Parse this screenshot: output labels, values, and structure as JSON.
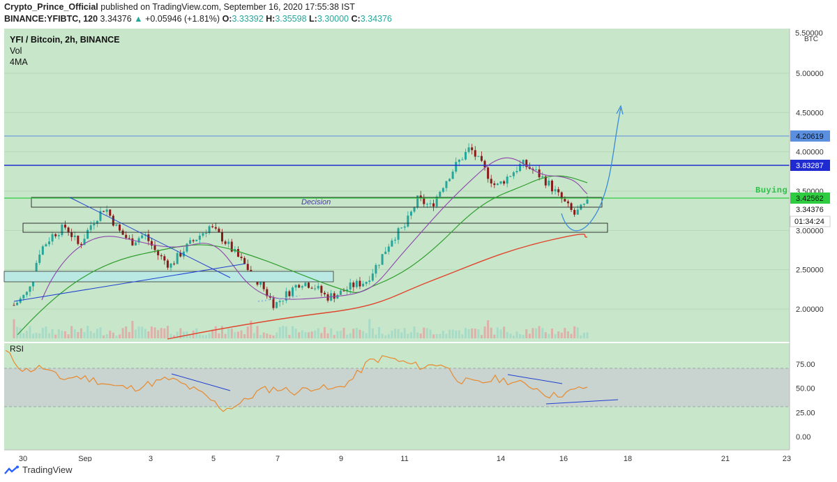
{
  "header": {
    "author": "Crypto_Prince_Official",
    "published_text": "published on TradingView.com, September 16, 2020 17:55:38 IST",
    "symbol": "BINANCE:YFIBTC, 120",
    "last": "3.34376",
    "change": "+0.05946 (+1.81%)",
    "o_label": "O:",
    "o": "3.33392",
    "h_label": "H:",
    "h": "3.35598",
    "l_label": "L:",
    "l": "3.30000",
    "c_label": "C:",
    "c": "3.34376"
  },
  "legend": {
    "title": "YFI / Bitcoin, 2h, BINANCE",
    "vol": "Vol",
    "ma": "4MA"
  },
  "axis": {
    "currency": "BTC",
    "top_partial": "5.50000"
  },
  "labels": {
    "decision": "Decision",
    "buying": "Buying",
    "rsi": "RSI",
    "countdown": "01:34:24",
    "last_price": "3.34376",
    "level_upper": "4.20619",
    "level_mid": "3.83287",
    "level_buy": "3.42562"
  },
  "footer": {
    "brand": "TradingView"
  },
  "colors": {
    "background": "#c8e6c9",
    "up": "#26a69a",
    "down": "#8b1a1a",
    "level_upper": "#5b8fe0",
    "level_mid": "#1f2bd1",
    "level_buy": "#2ecc40",
    "rsi_line": "#e88a2e",
    "ma_purple": "#8e44ad",
    "ma_green": "#2e9e2e",
    "ma_red": "#e0442c",
    "projection": "#3a8ad8"
  },
  "chart_data": [
    {
      "type": "line",
      "title": "YFI / Bitcoin, 2h, BINANCE",
      "ylabel": "BTC",
      "x_ticks": [
        "30",
        "Sep",
        "3",
        "5",
        "7",
        "9",
        "11",
        "14",
        "16",
        "18",
        "21",
        "23"
      ],
      "y_ticks": [
        2.0,
        2.5,
        3.0,
        3.5,
        4.0,
        4.5,
        5.0
      ],
      "ylim": [
        1.65,
        5.55
      ],
      "levels": [
        4.20619,
        3.83287,
        3.42562
      ],
      "last_price": 3.34376,
      "series": [
        {
          "name": "YFI / Bitcoin",
          "approx_closes": [
            2.05,
            2.2,
            2.75,
            2.95,
            3.05,
            2.8,
            3.1,
            3.3,
            3.0,
            2.85,
            2.95,
            2.7,
            2.55,
            2.75,
            2.9,
            3.05,
            2.9,
            2.7,
            2.5,
            2.3,
            2.05,
            2.2,
            2.35,
            2.3,
            2.15,
            2.2,
            2.3,
            2.35,
            2.6,
            2.9,
            3.05,
            3.4,
            3.3,
            3.6,
            3.85,
            4.05,
            3.8,
            3.55,
            3.7,
            3.85,
            3.75,
            3.6,
            3.4,
            3.2,
            3.34
          ]
        },
        {
          "name": "RSI",
          "approx_values": [
            88,
            68,
            72,
            60,
            62,
            58,
            52,
            50,
            55,
            60,
            52,
            42,
            28,
            35,
            48,
            50,
            46,
            52,
            48,
            58,
            78,
            82,
            76,
            72,
            76,
            58,
            55,
            60,
            56,
            52,
            42,
            46,
            52
          ]
        }
      ],
      "rsi_ticks": [
        0,
        25,
        50,
        75
      ]
    }
  ]
}
